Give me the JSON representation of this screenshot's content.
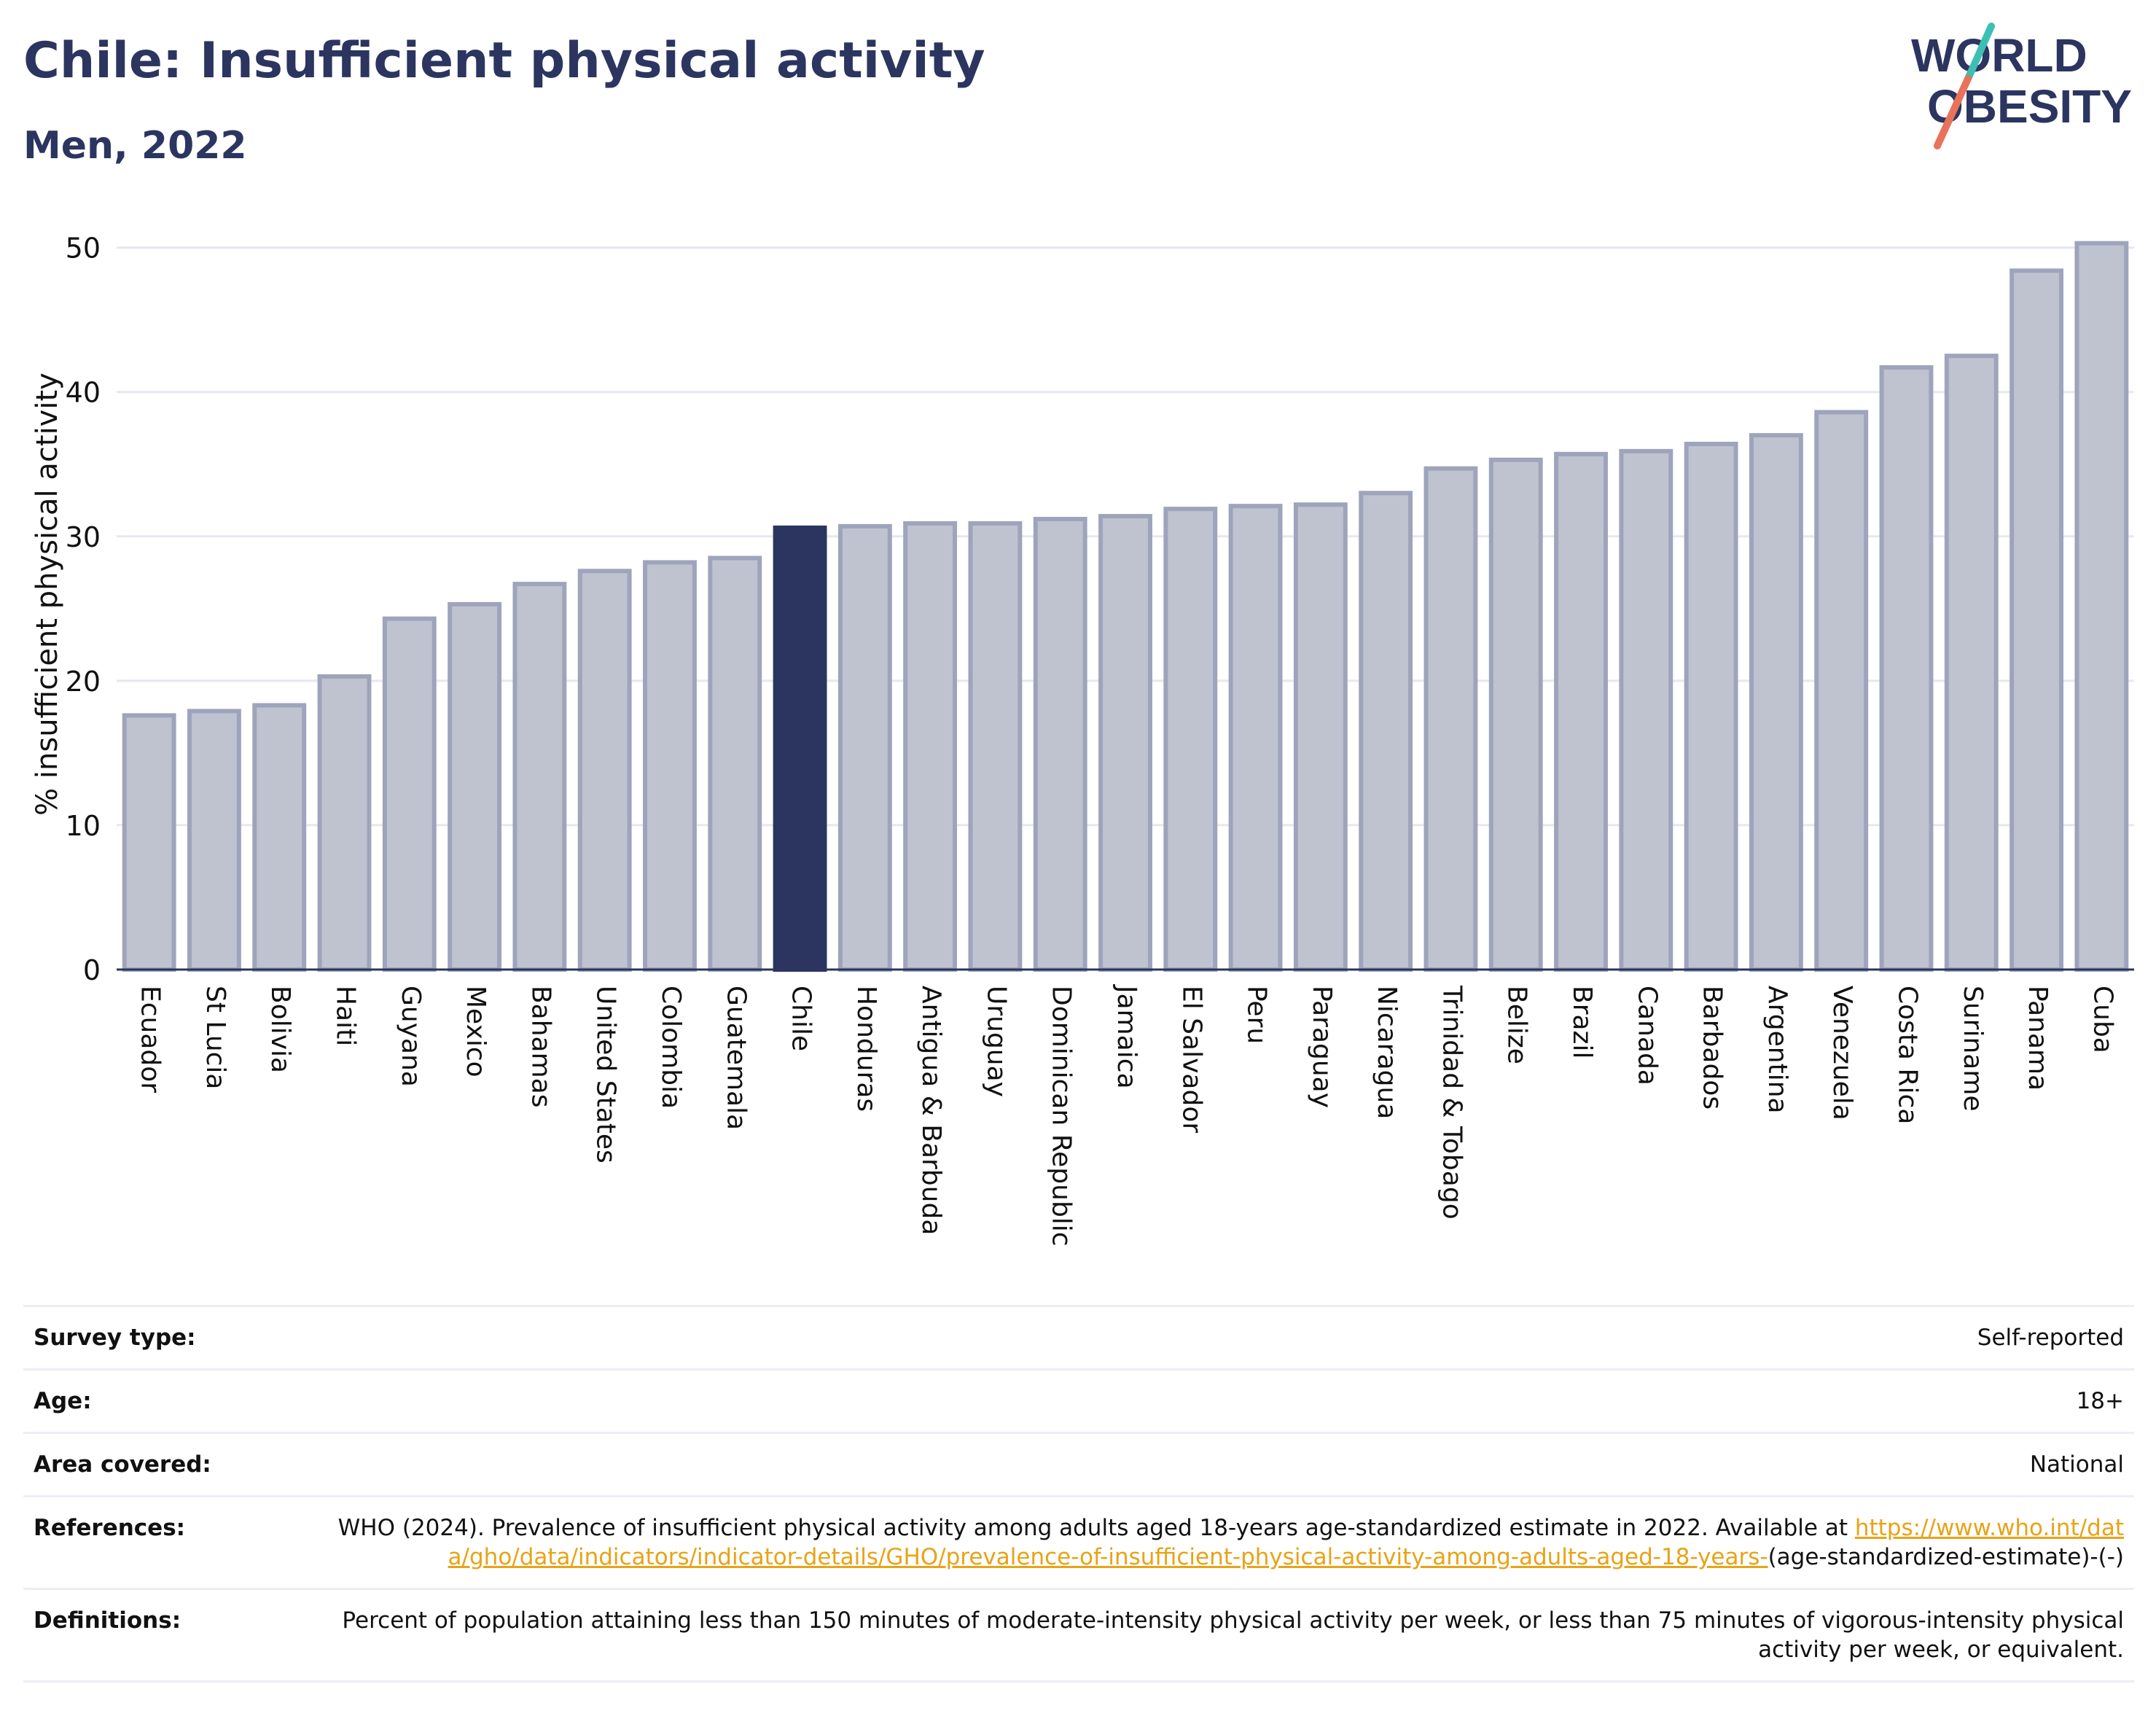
{
  "header": {
    "title": "Chile: Insufficient physical activity",
    "subtitle": "Men, 2022",
    "logo_text": [
      "WORLD",
      "OBESITY"
    ]
  },
  "colors": {
    "bar": "#bfc3d0",
    "bar_stroke": "#9ea4bb",
    "highlight": "#2b3560",
    "brand": "#2b3560",
    "link": "#e8a317",
    "logo_teal": "#3dbfb4",
    "logo_coral": "#e8735a"
  },
  "chart_data": {
    "type": "bar",
    "ylabel": "% insufficient physical activity",
    "ylim": [
      0,
      52
    ],
    "yticks": [
      0,
      10,
      20,
      30,
      40,
      50
    ],
    "grid": true,
    "highlight": "Chile",
    "categories": [
      "Ecuador",
      "St Lucia",
      "Bolivia",
      "Haiti",
      "Guyana",
      "Mexico",
      "Bahamas",
      "United States",
      "Colombia",
      "Guatemala",
      "Chile",
      "Honduras",
      "Antigua & Barbuda",
      "Uruguay",
      "Dominican Republic",
      "Jamaica",
      "El Salvador",
      "Peru",
      "Paraguay",
      "Nicaragua",
      "Trinidad & Tobago",
      "Belize",
      "Brazil",
      "Canada",
      "Barbados",
      "Argentina",
      "Venezuela",
      "Costa Rica",
      "Suriname",
      "Panama",
      "Cuba"
    ],
    "values": [
      17.6,
      17.9,
      18.3,
      20.3,
      24.3,
      25.3,
      26.7,
      27.6,
      28.2,
      28.5,
      30.6,
      30.7,
      30.9,
      30.9,
      31.2,
      31.4,
      31.9,
      32.1,
      32.2,
      33.0,
      34.7,
      35.3,
      35.7,
      35.9,
      36.4,
      37.0,
      38.6,
      41.7,
      42.5,
      48.4,
      50.3
    ]
  },
  "info_table": {
    "survey_type_label": "Survey type:",
    "survey_type_value": "Self-reported",
    "age_label": "Age:",
    "age_value": "18+",
    "area_label": "Area covered:",
    "area_value": "National",
    "references_label": "References:",
    "references_text": "WHO (2024). Prevalence of insufficient physical activity among adults aged 18-years age-standardized estimate in 2022. Available at ",
    "references_link": "https://www.who.int/data/gho/data/indicators/indicator-details/GHO/prevalence-of-insufficient-physical-activity-among-adults-aged-18-years-",
    "references_suffix": "(age-standardized-estimate)-(-)",
    "definitions_label": "Definitions:",
    "definitions_value": "Percent of population attaining less than 150 minutes of moderate-intensity physical activity per week, or less than 75 minutes of vigorous-intensity physical activity per week, or equivalent."
  }
}
